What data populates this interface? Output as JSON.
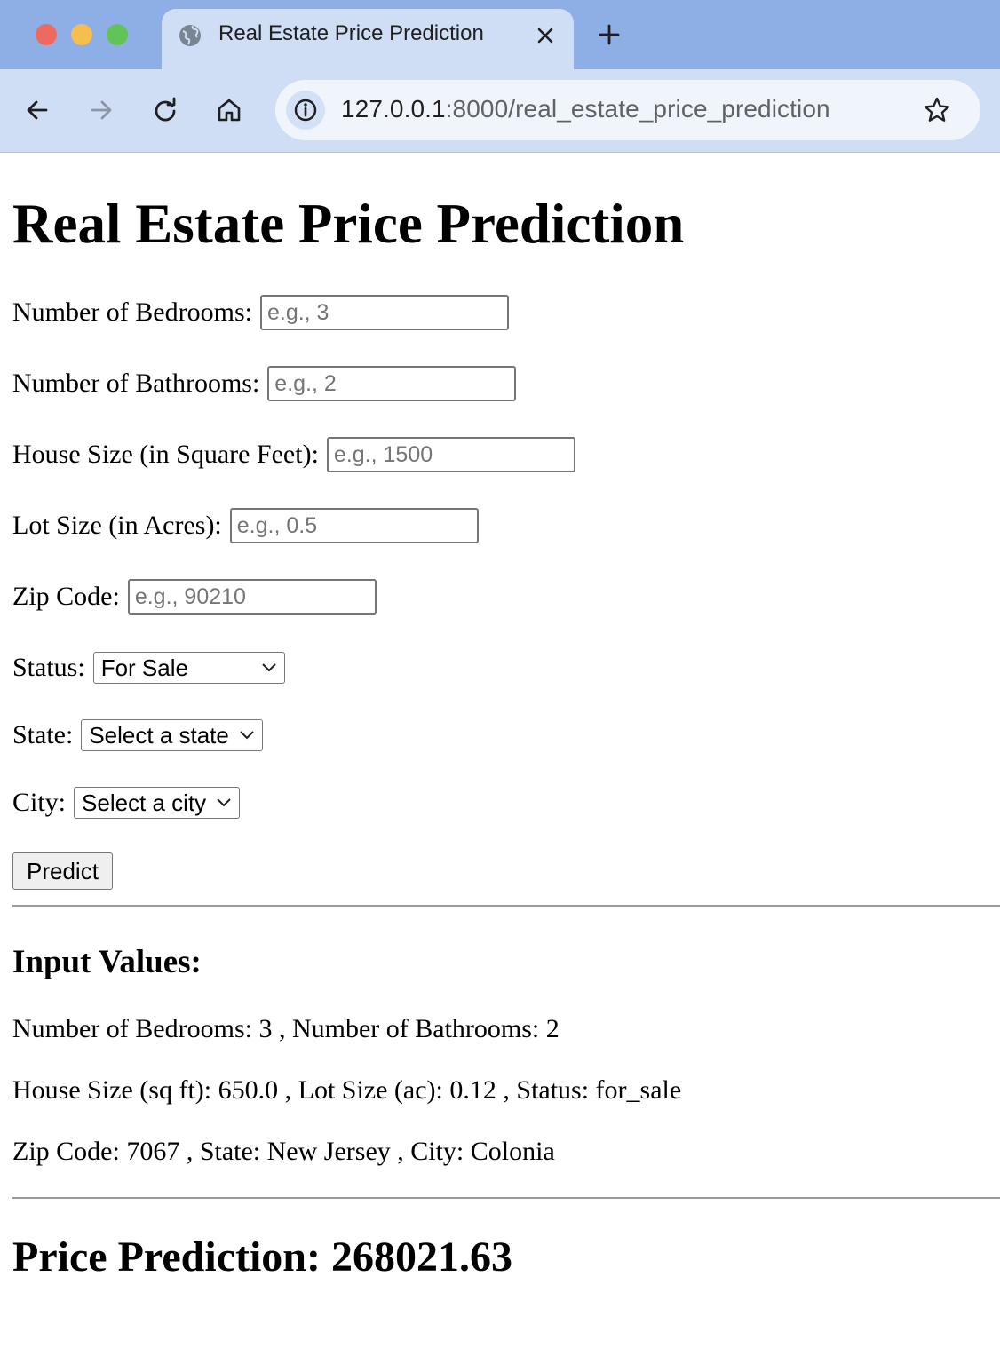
{
  "browser": {
    "tab_title": "Real Estate Price Prediction",
    "url_host": "127.0.0.1",
    "url_path": ":8000/real_estate_price_prediction",
    "icons": [
      "back-icon",
      "forward-icon",
      "reload-icon",
      "home-icon",
      "site-info-icon",
      "bookmark-star-icon",
      "close-icon",
      "new-tab-icon",
      "globe-icon"
    ]
  },
  "page": {
    "title": "Real Estate Price Prediction",
    "form": {
      "bedrooms_label": "Number of Bedrooms:",
      "bedrooms_placeholder": "e.g., 3",
      "bathrooms_label": "Number of Bathrooms:",
      "bathrooms_placeholder": "e.g., 2",
      "house_size_label": "House Size (in Square Feet):",
      "house_size_placeholder": "e.g., 1500",
      "lot_size_label": "Lot Size (in Acres):",
      "lot_size_placeholder": "e.g., 0.5",
      "zip_label": "Zip Code:",
      "zip_placeholder": "e.g., 90210",
      "status_label": "Status:",
      "status_value": "For Sale",
      "state_label": "State:",
      "state_value": "Select a state",
      "city_label": "City:",
      "city_value": "Select a city",
      "predict_label": "Predict"
    },
    "input_values": {
      "heading": "Input Values:",
      "line1": "Number of Bedrooms: 3 , Number of Bathrooms: 2",
      "line2": "House Size (sq ft): 650.0 , Lot Size (ac): 0.12 , Status: for_sale",
      "line3": "Zip Code: 7067 , State: New Jersey , City: Colonia"
    },
    "prediction": "Price Prediction: 268021.63"
  }
}
